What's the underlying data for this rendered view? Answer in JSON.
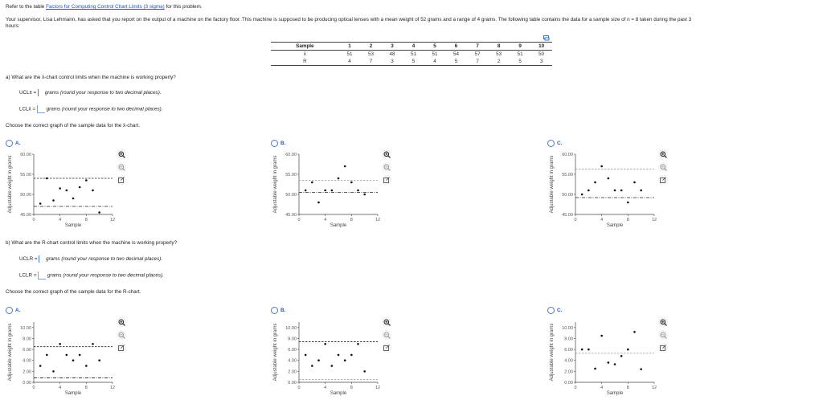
{
  "intro": {
    "prefix": "Refer to the table ",
    "link": "Factors for Computing Control Chart Limits (3 sigma)",
    "suffix": " for this problem.",
    "problem_line1": "Your supervisor, Lisa Lehmann, has asked that you report on the output of a machine on the factory floor. This machine is supposed to be producing optical lenses with a mean weight of 52 grams and a range of 4 grams. The following table contains the data for a sample size of n = 8 taken during the past 3",
    "problem_line2": "hours:"
  },
  "table": {
    "copy_icon": "copy-icon",
    "headers": [
      "Sample",
      "1",
      "2",
      "3",
      "4",
      "5",
      "6",
      "7",
      "8",
      "9",
      "10"
    ],
    "rows": [
      [
        "x̄",
        "51",
        "53",
        "48",
        "51",
        "51",
        "54",
        "57",
        "53",
        "51",
        "50"
      ],
      [
        "R",
        "4",
        "7",
        "3",
        "5",
        "4",
        "5",
        "7",
        "2",
        "5",
        "3"
      ]
    ]
  },
  "part_a": {
    "question": "a) What are the x̄-chart control limits when the machine is working properly?",
    "ucl_label": "UCLx̄ =",
    "lcl_label": "LCLx̄ =",
    "ucl_value": "",
    "lcl_value": "",
    "ucl_hint": "grams (round your response to two decimal places).",
    "lcl_hint": "grams (round your response to two decimal places).",
    "choose": "Choose the correct graph of the sample data for the x̄-chart."
  },
  "part_b": {
    "question": "b) What are the R-chart control limits when the machine is working properly?",
    "ucl_label": "UCLR =",
    "lcl_label": "LCLR =",
    "ucl_value": "",
    "lcl_value": "",
    "ucl_hint": "grams (round your response to two decimal places).",
    "lcl_hint": "grams (round your response to two decimal places).",
    "choose": "Choose the correct graph of the sample data for the R-chart."
  },
  "options": {
    "A": "A.",
    "B": "B.",
    "C": "C."
  },
  "axis": {
    "ylabel": "Adjustable weight in grams",
    "xlabel": "Sample"
  },
  "chart_data": [
    {
      "id": "xbar-A",
      "type": "scatter",
      "xlabel": "Sample",
      "ylabel": "Adjustable weight in grams",
      "xlim": [
        0,
        12
      ],
      "ylim": [
        45,
        60
      ],
      "xticks": [
        0,
        4,
        8,
        12
      ],
      "yticks": [
        "45.00",
        "50.00",
        "55.00",
        "60.00"
      ],
      "x": [
        1,
        2,
        3,
        4,
        5,
        6,
        7,
        8,
        9,
        10
      ],
      "y": [
        47.7,
        54,
        48.5,
        51.5,
        51,
        49,
        51.8,
        53.5,
        51,
        45.5
      ],
      "ucl": 54,
      "lcl": 47
    },
    {
      "id": "xbar-B",
      "type": "scatter",
      "xlabel": "Sample",
      "ylabel": "Adjustable weight in grams",
      "xlim": [
        0,
        12
      ],
      "ylim": [
        45,
        60
      ],
      "xticks": [
        0,
        4,
        8,
        12
      ],
      "yticks": [
        "45.00",
        "50.00",
        "55.00",
        "60.00"
      ],
      "x": [
        1,
        2,
        3,
        4,
        5,
        6,
        7,
        8,
        9,
        10
      ],
      "y": [
        51,
        53,
        48,
        51,
        51,
        54,
        57,
        53,
        51,
        50
      ],
      "ucl": 53.5,
      "lcl": 50.5
    },
    {
      "id": "xbar-C",
      "type": "scatter",
      "xlabel": "Sample",
      "ylabel": "Adjustable weight in grams",
      "xlim": [
        0,
        12
      ],
      "ylim": [
        45,
        60
      ],
      "xticks": [
        0,
        4,
        8,
        12
      ],
      "yticks": [
        "45.00",
        "50.00",
        "55.00",
        "60.00"
      ],
      "x": [
        1,
        2,
        3,
        4,
        5,
        6,
        7,
        8,
        9,
        10
      ],
      "y": [
        50,
        51,
        53,
        57,
        54,
        51,
        51,
        48,
        53,
        51
      ],
      "ucl": 56.3,
      "lcl": 49.2
    },
    {
      "id": "R-A",
      "type": "scatter",
      "xlabel": "Sample",
      "ylabel": "Adjustable weight in grams",
      "xlim": [
        0,
        12
      ],
      "ylim": [
        0,
        11
      ],
      "xticks": [
        0,
        4,
        8,
        12
      ],
      "yticks": [
        "0.00",
        "2.00",
        "4.00",
        "6.00",
        "8.00",
        "10.00"
      ],
      "x": [
        1,
        2,
        3,
        4,
        5,
        6,
        7,
        8,
        9,
        10
      ],
      "y": [
        3,
        5,
        2,
        7,
        5,
        4,
        5,
        3,
        7,
        4
      ],
      "ucl": 6.5,
      "lcl": 0.8
    },
    {
      "id": "R-B",
      "type": "scatter",
      "xlabel": "Sample",
      "ylabel": "Adjustable weight in grams",
      "xlim": [
        0,
        12
      ],
      "ylim": [
        0,
        11
      ],
      "xticks": [
        0,
        4,
        8,
        12
      ],
      "yticks": [
        "0.00",
        "2.00",
        "4.00",
        "6.00",
        "8.00",
        "10.00"
      ],
      "x": [
        1,
        2,
        3,
        4,
        5,
        6,
        7,
        8,
        9,
        10
      ],
      "y": [
        5,
        3,
        4,
        7,
        3,
        5,
        4,
        5,
        7,
        2
      ],
      "ucl": 7.4,
      "lcl": 0.5
    },
    {
      "id": "R-C",
      "type": "scatter",
      "xlabel": "Sample",
      "ylabel": "Adjustable weight in grams",
      "xlim": [
        0,
        12
      ],
      "ylim": [
        0,
        11
      ],
      "xticks": [
        0,
        4,
        8,
        12
      ],
      "yticks": [
        "0.00",
        "2.00",
        "4.00",
        "6.00",
        "8.00",
        "10.00"
      ],
      "x": [
        1,
        2,
        3,
        4,
        5,
        6,
        7,
        8,
        9,
        10
      ],
      "y": [
        6,
        6,
        2.5,
        8.5,
        3.6,
        3.3,
        4.8,
        6,
        9.2,
        2.4
      ],
      "ucl": 5.3,
      "lcl": null
    }
  ]
}
